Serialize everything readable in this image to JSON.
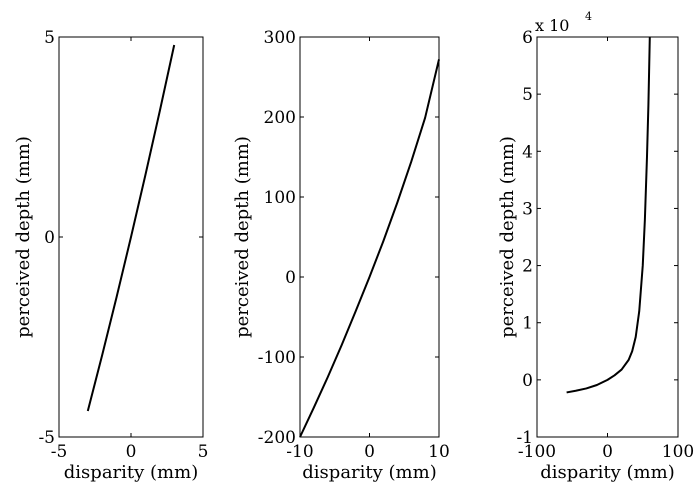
{
  "chart_data": [
    {
      "type": "line",
      "title": "",
      "xlabel": "disparity (mm)",
      "ylabel": "perceived depth (mm)",
      "xlim": [
        -5,
        5
      ],
      "ylim": [
        -5,
        5
      ],
      "xticks": [
        -5,
        0,
        5
      ],
      "yticks": [
        -5,
        0,
        5
      ],
      "xtick_labels": [
        "-5",
        "0",
        "5"
      ],
      "ytick_labels": [
        "-5",
        "0",
        "5"
      ],
      "grid": false,
      "series": [
        {
          "x": [
            -3,
            -2,
            -1,
            0,
            1,
            2,
            3
          ],
          "y": [
            -4.35,
            -2.95,
            -1.5,
            0,
            1.55,
            3.15,
            4.8
          ]
        }
      ]
    },
    {
      "type": "line",
      "title": "",
      "xlabel": "disparity (mm)",
      "ylabel": "perceived depth (mm)",
      "xlim": [
        -10,
        10
      ],
      "ylim": [
        -200,
        300
      ],
      "xticks": [
        -10,
        0,
        10
      ],
      "yticks": [
        -200,
        -100,
        0,
        100,
        200,
        300
      ],
      "xtick_labels": [
        "-10",
        "0",
        "10"
      ],
      "ytick_labels": [
        "-200",
        "-100",
        "0",
        "100",
        "200",
        "300"
      ],
      "grid": false,
      "series": [
        {
          "x": [
            -10,
            -8,
            -6,
            -4,
            -2,
            0,
            2,
            4,
            6,
            8,
            10
          ],
          "y": [
            -200,
            -163,
            -125,
            -85,
            -43,
            0,
            45,
            93,
            144,
            199,
            272
          ]
        }
      ]
    },
    {
      "type": "line",
      "title": "",
      "xlabel": "disparity (mm)",
      "ylabel": "perceived depth (mm)",
      "xlim": [
        -100,
        100
      ],
      "ylim": [
        -1,
        6
      ],
      "y_multiplier": "x 10",
      "y_multiplier_exponent": "4",
      "xticks": [
        -100,
        0,
        100
      ],
      "yticks": [
        -1,
        0,
        1,
        2,
        3,
        4,
        5,
        6
      ],
      "xtick_labels": [
        "-100",
        "0",
        "100"
      ],
      "ytick_labels": [
        "-1",
        "0",
        "1",
        "2",
        "3",
        "4",
        "5",
        "6"
      ],
      "grid": false,
      "series": [
        {
          "x": [
            -58,
            -45,
            -30,
            -15,
            0,
            10,
            20,
            30,
            35,
            40,
            45,
            50,
            53,
            56,
            58,
            59,
            60
          ],
          "y": [
            -0.22,
            -0.19,
            -0.15,
            -0.09,
            0,
            0.08,
            0.18,
            0.35,
            0.5,
            0.75,
            1.2,
            2.0,
            2.8,
            3.9,
            4.8,
            5.4,
            6.0
          ]
        }
      ]
    }
  ]
}
